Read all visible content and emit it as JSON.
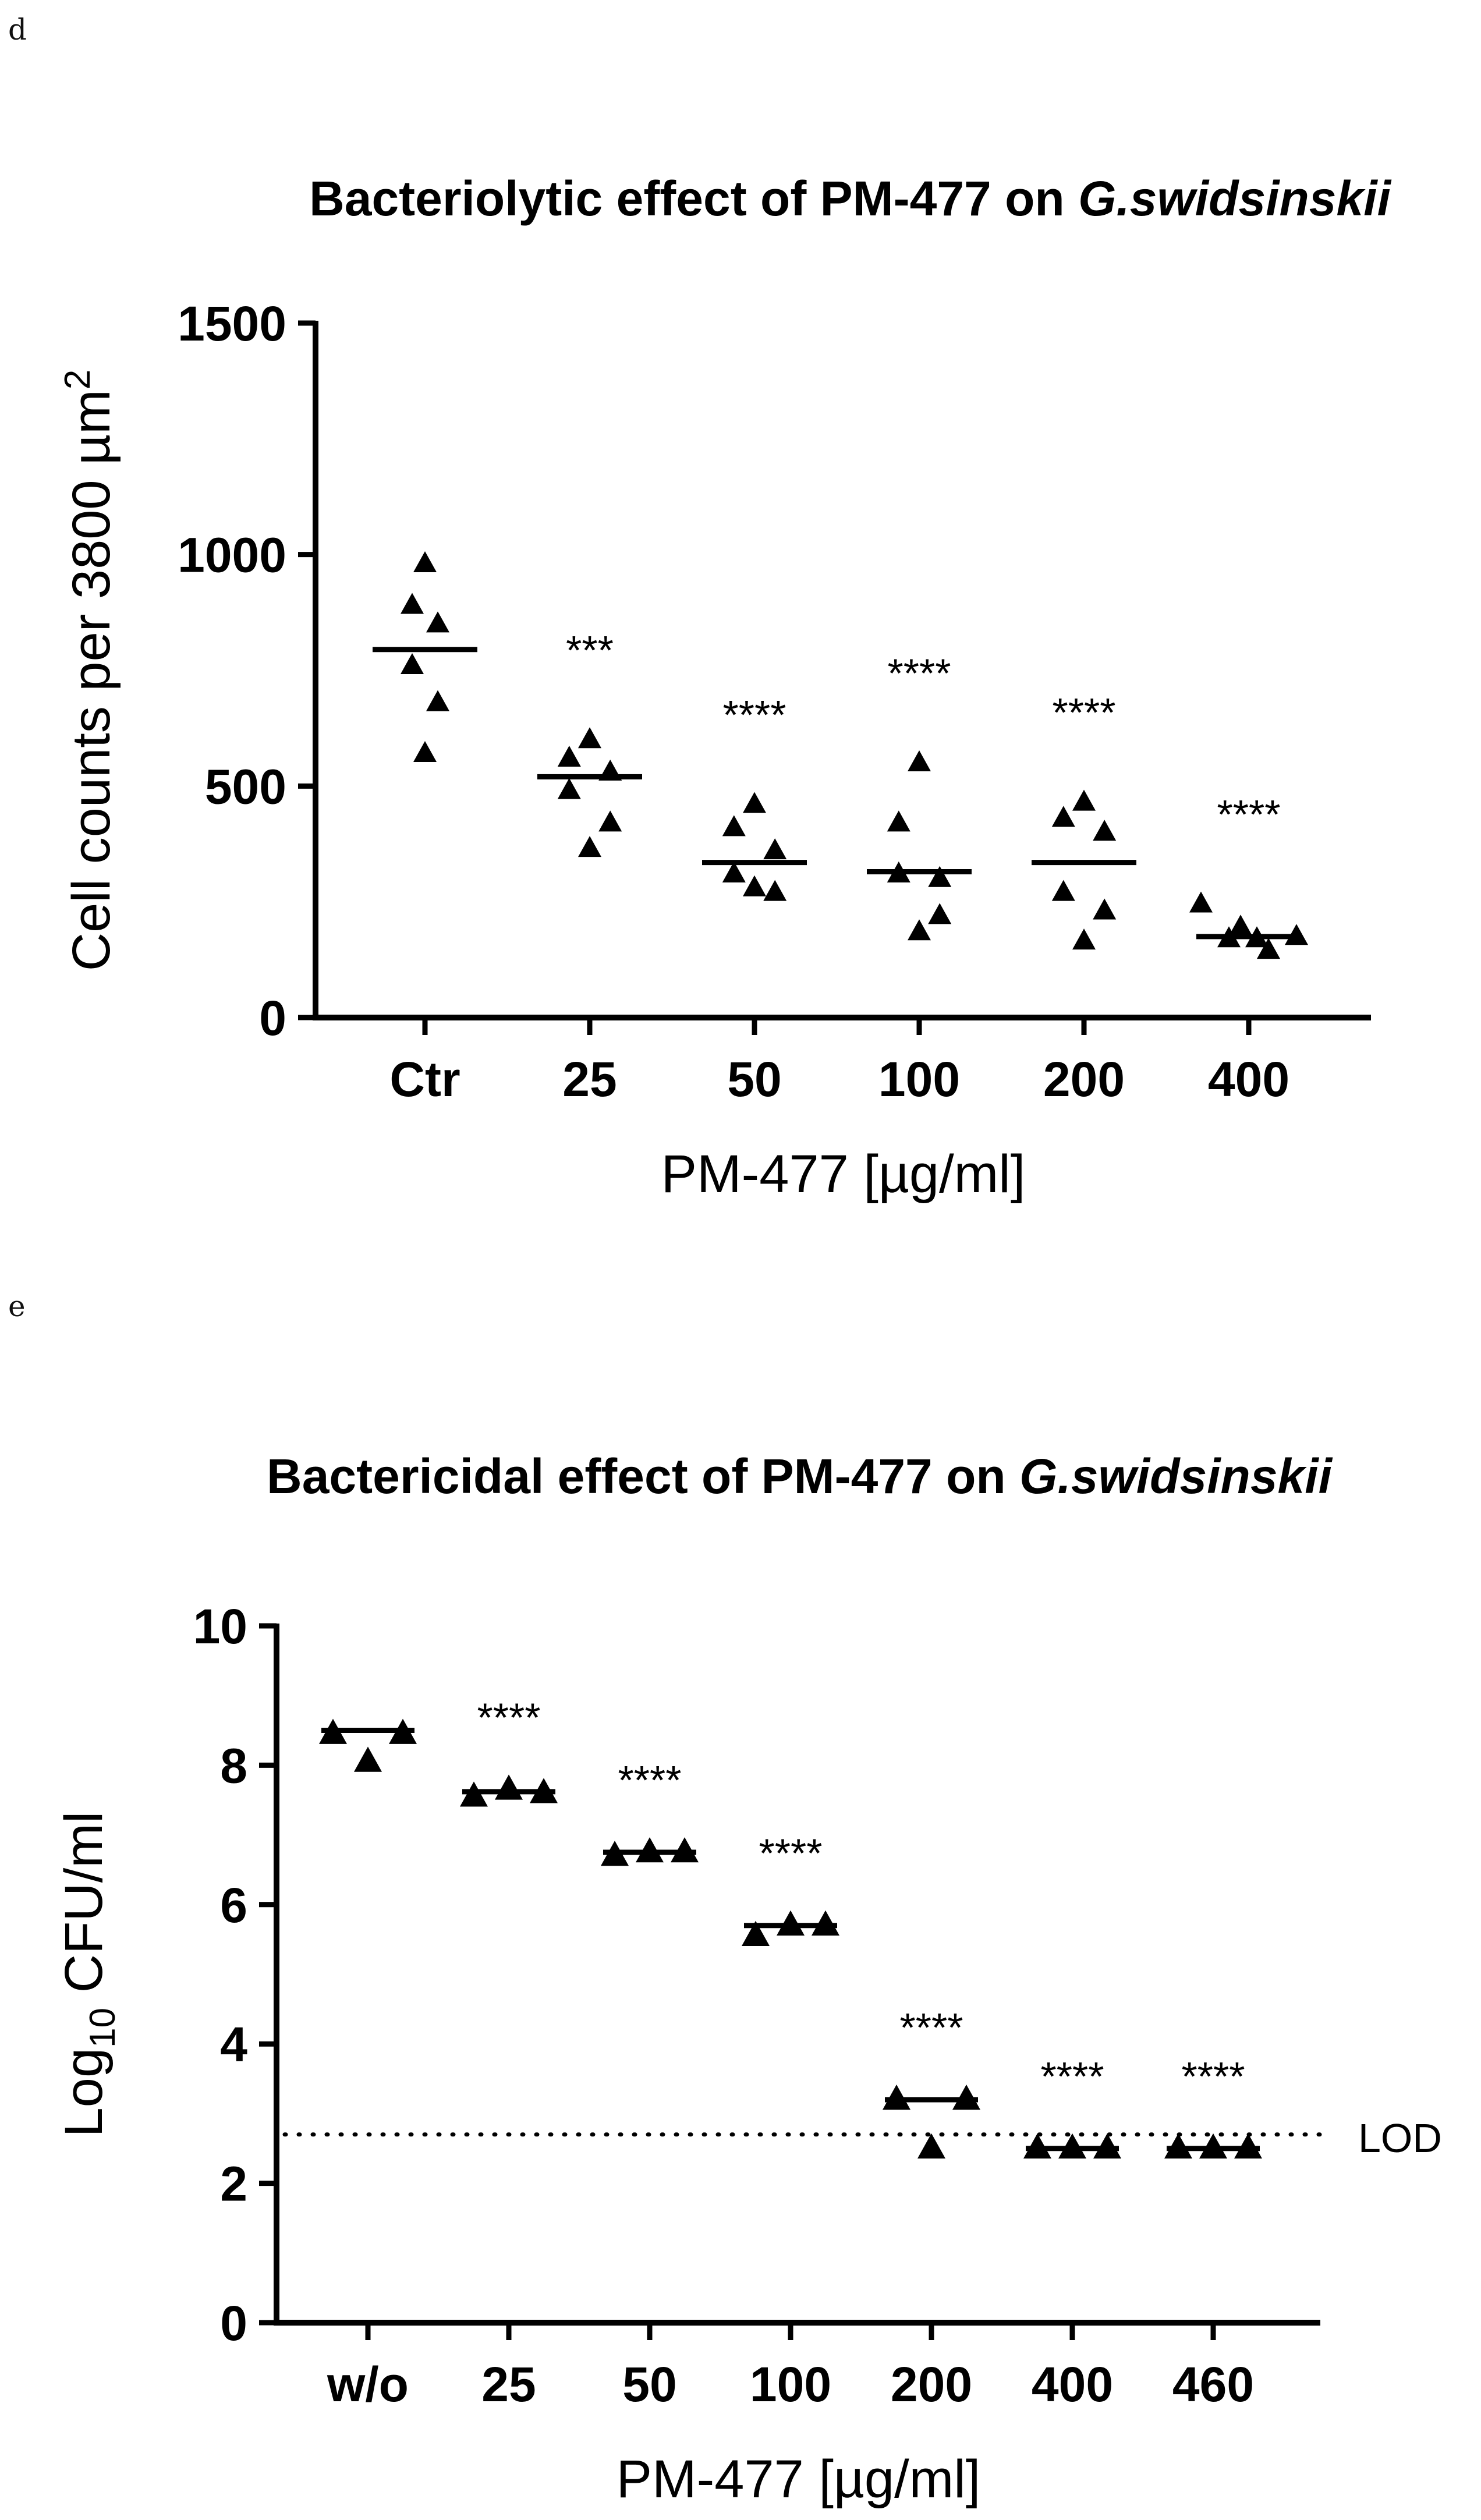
{
  "panels": [
    "d",
    "e"
  ],
  "chart_data": [
    {
      "type": "scatter",
      "title_plain": "Bacteriolytic effect of PM-477 on ",
      "title_italic": "G.swidsinskii",
      "ylabel_main": "Cell counts per 3800 µm",
      "ylabel_sup": "2",
      "xlabel": "PM-477 [µg/ml]",
      "ylim": [
        0,
        1500
      ],
      "yticks": [
        "0",
        "500",
        "1000",
        "1500"
      ],
      "categories": [
        "Ctr",
        "25",
        "50",
        "100",
        "200",
        "400"
      ],
      "points": [
        [
          980,
          890,
          850,
          760,
          680,
          570
        ],
        [
          600,
          560,
          530,
          490,
          420,
          365
        ],
        [
          460,
          410,
          360,
          310,
          270,
          280
        ],
        [
          550,
          420,
          300,
          310,
          220,
          185
        ],
        [
          465,
          430,
          400,
          270,
          230,
          165
        ],
        [
          245,
          195,
          170,
          145,
          170,
          175
        ]
      ],
      "means": [
        795,
        520,
        335,
        315,
        335,
        175
      ],
      "significance": [
        "",
        "***",
        "****",
        "****",
        "****",
        "****"
      ],
      "marker_color": "#000000"
    },
    {
      "type": "scatter",
      "title_plain": "Bactericidal effect of PM-477 on ",
      "title_italic": "G.swidsinskii",
      "ylabel_main": "Log",
      "ylabel_sub": "10",
      "ylabel_rest": " CFU/ml",
      "xlabel": "PM-477 [µg/ml]",
      "ylim": [
        0,
        10
      ],
      "yticks": [
        "0",
        "2",
        "4",
        "6",
        "8",
        "10"
      ],
      "categories": [
        "w/o",
        "25",
        "50",
        "100",
        "200",
        "400",
        "460"
      ],
      "points": [
        [
          8.45,
          8.05,
          8.45
        ],
        [
          7.55,
          7.65,
          7.6
        ],
        [
          6.7,
          6.75,
          6.75
        ],
        [
          5.55,
          5.7,
          5.7
        ],
        [
          3.2,
          2.5,
          3.2
        ],
        [
          2.5,
          2.5,
          2.5
        ],
        [
          2.5,
          2.5,
          2.5
        ]
      ],
      "means": [
        8.5,
        7.62,
        6.75,
        5.7,
        3.2,
        2.5,
        2.5
      ],
      "significance": [
        "",
        "****",
        "****",
        "****",
        "****",
        "****",
        "****"
      ],
      "lod_value": 2.7,
      "lod_label": "LOD",
      "marker_color": "#000000"
    }
  ]
}
